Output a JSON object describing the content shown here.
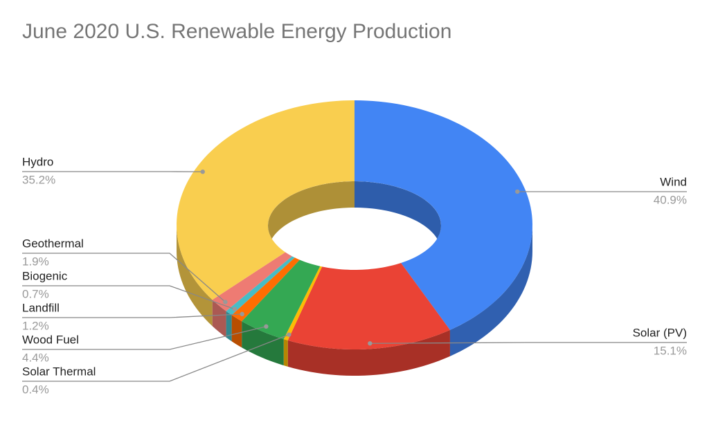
{
  "chart_data": {
    "type": "donut",
    "title": "June 2020 U.S. Renewable Energy Production",
    "categories": [
      "Wind",
      "Solar (PV)",
      "Solar Thermal",
      "Wood Fuel",
      "Landfill",
      "Biogenic",
      "Geothermal",
      "Hydro"
    ],
    "values": [
      40.9,
      15.1,
      0.4,
      4.4,
      1.2,
      0.7,
      1.9,
      35.2
    ],
    "value_labels": [
      "40.9%",
      "15.1%",
      "0.4%",
      "4.4%",
      "1.2%",
      "0.7%",
      "1.9%",
      "35.2%"
    ],
    "colors": [
      "#4285f4",
      "#ea4335",
      "#fbbc04",
      "#34a853",
      "#ff6d01",
      "#46bdc6",
      "#ee7b73",
      "#f9ce4f"
    ]
  }
}
